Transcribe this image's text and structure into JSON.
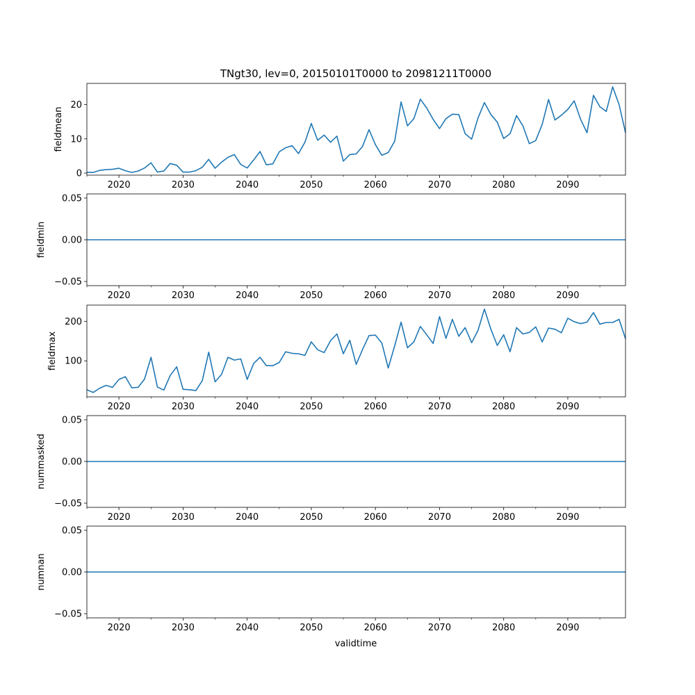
{
  "figure": {
    "title": "TNgt30, lev=0, 20150101T0000 to 20981211T0000",
    "xlabel": "validtime"
  },
  "colors": {
    "line": "#1f77b4",
    "axis": "#000000",
    "background": "#ffffff"
  },
  "chart_data": [
    {
      "type": "line",
      "title": "TNgt30, lev=0, 20150101T0000 to 20981211T0000",
      "ylabel": "fieldmean",
      "xlabel": "",
      "xlim": [
        2015,
        2099
      ],
      "ylim": [
        -0.6,
        26.2
      ],
      "yticks": [
        0,
        10,
        20
      ],
      "ytick_labels": [
        "0",
        "10",
        "20"
      ],
      "xticks": [
        2020,
        2030,
        2040,
        2050,
        2060,
        2070,
        2080,
        2090
      ],
      "xtick_labels": [
        "2020",
        "2030",
        "2040",
        "2050",
        "2060",
        "2070",
        "2080",
        "2090"
      ],
      "x": [
        2015,
        2016,
        2017,
        2018,
        2019,
        2020,
        2021,
        2022,
        2023,
        2024,
        2025,
        2026,
        2027,
        2028,
        2029,
        2030,
        2031,
        2032,
        2033,
        2034,
        2035,
        2036,
        2037,
        2038,
        2039,
        2040,
        2041,
        2042,
        2043,
        2044,
        2045,
        2046,
        2047,
        2048,
        2049,
        2050,
        2051,
        2052,
        2053,
        2054,
        2055,
        2056,
        2057,
        2058,
        2059,
        2060,
        2061,
        2062,
        2063,
        2064,
        2065,
        2066,
        2067,
        2068,
        2069,
        2070,
        2071,
        2072,
        2073,
        2074,
        2075,
        2076,
        2077,
        2078,
        2079,
        2080,
        2081,
        2082,
        2083,
        2084,
        2085,
        2086,
        2087,
        2088,
        2089,
        2090,
        2091,
        2092,
        2093,
        2094,
        2095,
        2096,
        2097,
        2098,
        2099
      ],
      "values": [
        0.2,
        0.2,
        0.8,
        1.0,
        1.1,
        1.4,
        0.7,
        0.2,
        0.6,
        1.5,
        3.0,
        0.3,
        0.6,
        2.8,
        2.3,
        0.3,
        0.3,
        0.7,
        1.7,
        4.0,
        1.4,
        3.2,
        4.6,
        5.4,
        2.5,
        1.5,
        3.8,
        6.3,
        2.4,
        2.7,
        6.2,
        7.4,
        8.0,
        5.7,
        9.0,
        14.5,
        9.6,
        11.1,
        9.0,
        10.8,
        3.5,
        5.4,
        5.6,
        7.8,
        12.7,
        8.3,
        5.2,
        6.0,
        9.3,
        20.8,
        13.8,
        15.9,
        21.6,
        19.0,
        15.7,
        13.0,
        15.9,
        17.2,
        17.1,
        11.5,
        9.9,
        16.1,
        20.6,
        17.1,
        14.9,
        10.1,
        11.5,
        16.8,
        13.8,
        8.6,
        9.5,
        14.2,
        21.5,
        15.5,
        16.9,
        18.6,
        21.1,
        15.7,
        11.8,
        22.7,
        19.4,
        18.0,
        25.2,
        20.0,
        11.8
      ]
    },
    {
      "type": "line",
      "ylabel": "fieldmin",
      "xlabel": "",
      "xlim": [
        2015,
        2099
      ],
      "ylim": [
        -0.055,
        0.055
      ],
      "yticks": [
        -0.05,
        0,
        0.05
      ],
      "ytick_labels": [
        "−0.05",
        "0.00",
        "0.05"
      ],
      "xticks": [
        2020,
        2030,
        2040,
        2050,
        2060,
        2070,
        2080,
        2090
      ],
      "xtick_labels": [
        "2020",
        "2030",
        "2040",
        "2050",
        "2060",
        "2070",
        "2080",
        "2090"
      ],
      "x": [
        2015,
        2099
      ],
      "values": [
        0,
        0
      ]
    },
    {
      "type": "line",
      "ylabel": "fieldmax",
      "xlabel": "",
      "xlim": [
        2015,
        2099
      ],
      "ylim": [
        9,
        241
      ],
      "yticks": [
        100,
        200
      ],
      "ytick_labels": [
        "100",
        "200"
      ],
      "xticks": [
        2020,
        2030,
        2040,
        2050,
        2060,
        2070,
        2080,
        2090
      ],
      "xtick_labels": [
        "2020",
        "2030",
        "2040",
        "2050",
        "2060",
        "2070",
        "2080",
        "2090"
      ],
      "x": [
        2015,
        2016,
        2017,
        2018,
        2019,
        2020,
        2021,
        2022,
        2023,
        2024,
        2025,
        2026,
        2027,
        2028,
        2029,
        2030,
        2031,
        2032,
        2033,
        2034,
        2035,
        2036,
        2037,
        2038,
        2039,
        2040,
        2041,
        2042,
        2043,
        2044,
        2045,
        2046,
        2047,
        2048,
        2049,
        2050,
        2051,
        2052,
        2053,
        2054,
        2055,
        2056,
        2057,
        2058,
        2059,
        2060,
        2061,
        2062,
        2063,
        2064,
        2065,
        2066,
        2067,
        2068,
        2069,
        2070,
        2071,
        2072,
        2073,
        2074,
        2075,
        2076,
        2077,
        2078,
        2079,
        2080,
        2081,
        2082,
        2083,
        2084,
        2085,
        2086,
        2087,
        2088,
        2089,
        2090,
        2091,
        2092,
        2093,
        2094,
        2095,
        2096,
        2097,
        2098,
        2099
      ],
      "values": [
        27,
        20,
        31,
        38,
        33,
        53,
        60,
        32,
        33,
        54,
        109,
        34,
        26,
        63,
        85,
        28,
        27,
        25,
        50,
        122,
        47,
        66,
        109,
        102,
        105,
        53,
        93,
        109,
        88,
        88,
        96,
        123,
        119,
        118,
        114,
        148,
        128,
        121,
        151,
        168,
        118,
        152,
        91,
        129,
        164,
        165,
        145,
        82,
        138,
        198,
        133,
        148,
        187,
        166,
        144,
        212,
        157,
        205,
        162,
        184,
        146,
        177,
        231,
        180,
        139,
        166,
        123,
        184,
        168,
        172,
        186,
        148,
        183,
        180,
        171,
        208,
        199,
        194,
        198,
        222,
        193,
        197,
        197,
        205,
        156
      ]
    },
    {
      "type": "line",
      "ylabel": "nummasked",
      "xlabel": "",
      "xlim": [
        2015,
        2099
      ],
      "ylim": [
        -0.055,
        0.055
      ],
      "yticks": [
        -0.05,
        0,
        0.05
      ],
      "ytick_labels": [
        "−0.05",
        "0.00",
        "0.05"
      ],
      "xticks": [
        2020,
        2030,
        2040,
        2050,
        2060,
        2070,
        2080,
        2090
      ],
      "xtick_labels": [
        "2020",
        "2030",
        "2040",
        "2050",
        "2060",
        "2070",
        "2080",
        "2090"
      ],
      "x": [
        2015,
        2099
      ],
      "values": [
        0,
        0
      ]
    },
    {
      "type": "line",
      "ylabel": "numnan",
      "xlabel": "validtime",
      "xlim": [
        2015,
        2099
      ],
      "ylim": [
        -0.055,
        0.055
      ],
      "yticks": [
        -0.05,
        0,
        0.05
      ],
      "ytick_labels": [
        "−0.05",
        "0.00",
        "0.05"
      ],
      "xticks": [
        2020,
        2030,
        2040,
        2050,
        2060,
        2070,
        2080,
        2090
      ],
      "xtick_labels": [
        "2020",
        "2030",
        "2040",
        "2050",
        "2060",
        "2070",
        "2080",
        "2090"
      ],
      "x": [
        2015,
        2099
      ],
      "values": [
        0,
        0
      ]
    }
  ]
}
